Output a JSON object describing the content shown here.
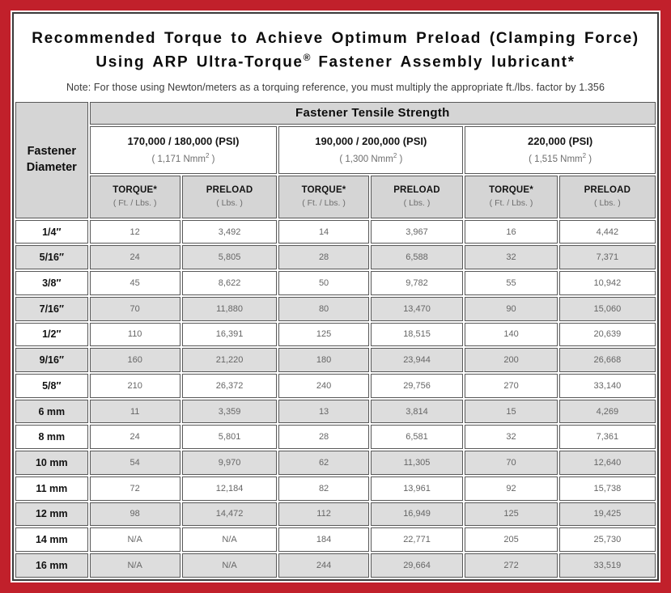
{
  "frame": {
    "border_color": "#c1202b"
  },
  "title": {
    "line1": "Recommended Torque to Achieve Optimum Preload (Clamping Force)",
    "line2_pre": "Using ARP Ultra-Torque",
    "line2_sup": "®",
    "line2_post": " Fastener Assembly lubricant*",
    "note": "Note: For those using Newton/meters as a torquing reference, you must multiply the appropriate ft./lbs. factor by 1.356"
  },
  "table": {
    "tensile_header": "Fastener Tensile Strength",
    "diameter_header_line1": "Fastener",
    "diameter_header_line2": "Diameter",
    "groups": [
      {
        "psi": "170,000 / 180,000 (PSI)",
        "nmm_pre": "( 1,171 Nmm",
        "nmm_sup": "2",
        "nmm_post": " )"
      },
      {
        "psi": "190,000 / 200,000 (PSI)",
        "nmm_pre": "( 1,300 Nmm",
        "nmm_sup": "2",
        "nmm_post": " )"
      },
      {
        "psi": "220,000 (PSI)",
        "nmm_pre": "( 1,515 Nmm",
        "nmm_sup": "2",
        "nmm_post": " )"
      }
    ],
    "col_headers": {
      "torque_label": "TORQUE*",
      "torque_unit": "( Ft. / Lbs. )",
      "preload_label": "PRELOAD",
      "preload_unit": "( Lbs. )"
    },
    "rows": [
      {
        "diameter": "1/4″",
        "values": [
          "12",
          "3,492",
          "14",
          "3,967",
          "16",
          "4,442"
        ]
      },
      {
        "diameter": "5/16″",
        "values": [
          "24",
          "5,805",
          "28",
          "6,588",
          "32",
          "7,371"
        ]
      },
      {
        "diameter": "3/8″",
        "values": [
          "45",
          "8,622",
          "50",
          "9,782",
          "55",
          "10,942"
        ]
      },
      {
        "diameter": "7/16″",
        "values": [
          "70",
          "11,880",
          "80",
          "13,470",
          "90",
          "15,060"
        ]
      },
      {
        "diameter": "1/2″",
        "values": [
          "110",
          "16,391",
          "125",
          "18,515",
          "140",
          "20,639"
        ]
      },
      {
        "diameter": "9/16″",
        "values": [
          "160",
          "21,220",
          "180",
          "23,944",
          "200",
          "26,668"
        ]
      },
      {
        "diameter": "5/8″",
        "values": [
          "210",
          "26,372",
          "240",
          "29,756",
          "270",
          "33,140"
        ]
      },
      {
        "diameter": "6 mm",
        "values": [
          "11",
          "3,359",
          "13",
          "3,814",
          "15",
          "4,269"
        ]
      },
      {
        "diameter": "8 mm",
        "values": [
          "24",
          "5,801",
          "28",
          "6,581",
          "32",
          "7,361"
        ]
      },
      {
        "diameter": "10 mm",
        "values": [
          "54",
          "9,970",
          "62",
          "11,305",
          "70",
          "12,640"
        ]
      },
      {
        "diameter": "11 mm",
        "values": [
          "72",
          "12,184",
          "82",
          "13,961",
          "92",
          "15,738"
        ]
      },
      {
        "diameter": "12 mm",
        "values": [
          "98",
          "14,472",
          "112",
          "16,949",
          "125",
          "19,425"
        ]
      },
      {
        "diameter": "14 mm",
        "values": [
          "N/A",
          "N/A",
          "184",
          "22,771",
          "205",
          "25,730"
        ]
      },
      {
        "diameter": "16 mm",
        "values": [
          "N/A",
          "N/A",
          "244",
          "29,664",
          "272",
          "33,519"
        ]
      }
    ]
  }
}
